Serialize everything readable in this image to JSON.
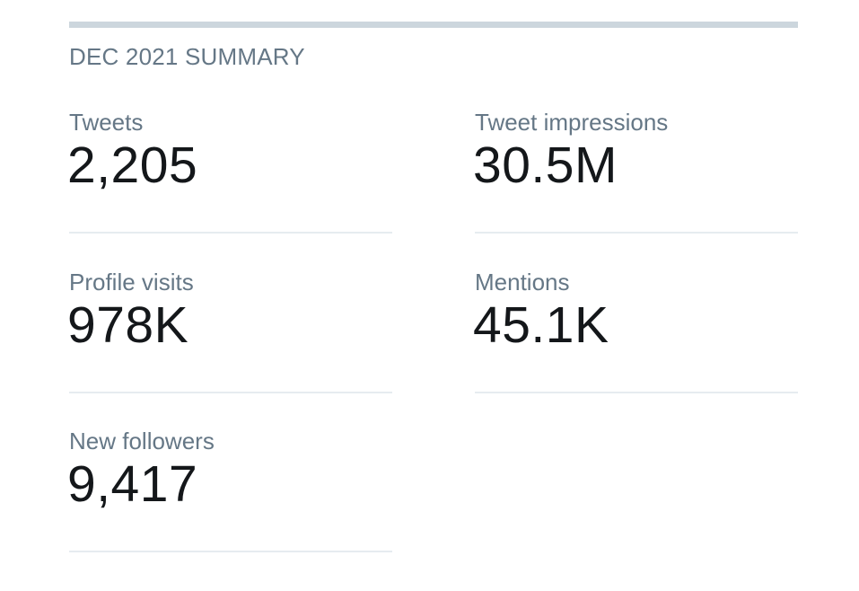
{
  "summary": {
    "title": "DEC 2021 SUMMARY"
  },
  "stats": [
    {
      "label": "Tweets",
      "value": "2,205"
    },
    {
      "label": "Tweet impressions",
      "value": "30.5M"
    },
    {
      "label": "Profile visits",
      "value": "978K"
    },
    {
      "label": "Mentions",
      "value": "45.1K"
    },
    {
      "label": "New followers",
      "value": "9,417"
    }
  ],
  "colors": {
    "label": "#657786",
    "value": "#14171a",
    "divider": "#e6ecf0",
    "top_bar": "#ccd6dd"
  }
}
